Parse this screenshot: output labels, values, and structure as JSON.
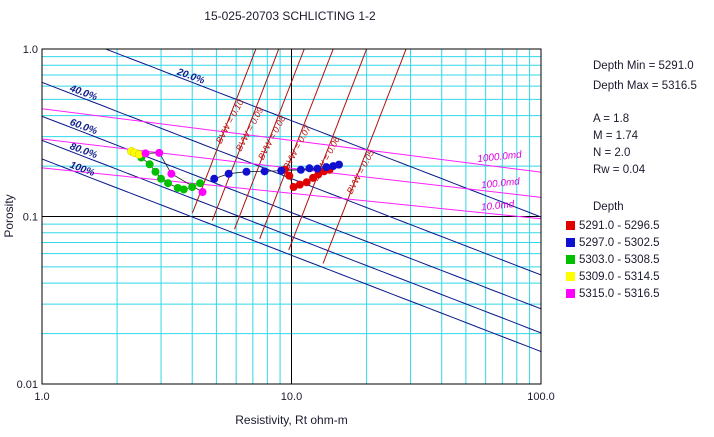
{
  "title": "15-025-20703 SCHLICTING 1-2",
  "info": {
    "depth_min": "Depth Min = 5291.0",
    "depth_max": "Depth Max = 5316.5",
    "a": "A = 1.8",
    "m": "M = 1.74",
    "n": "N = 2.0",
    "rw": "Rw = 0.04"
  },
  "legend": {
    "title": "Depth",
    "items": [
      {
        "label": "5291.0 - 5296.5",
        "color": "#e00000"
      },
      {
        "label": "5297.0 - 5302.5",
        "color": "#1010d0"
      },
      {
        "label": "5303.0 - 5308.5",
        "color": "#00c000"
      },
      {
        "label": "5309.0 - 5314.5",
        "color": "#ffff00"
      },
      {
        "label": "5315.0 - 5316.5",
        "color": "#ff00ff"
      }
    ]
  },
  "chart_data": {
    "type": "scatter",
    "title": "15-025-20703 SCHLICTING 1-2",
    "xlabel": "Resistivity, Rt ohm-m",
    "ylabel": "Porosity",
    "x_scale": "log",
    "y_scale": "log",
    "xlim": [
      1.0,
      100.0
    ],
    "ylim": [
      0.01,
      1.0
    ],
    "x_ticks": [
      "1.0",
      "10.0",
      "100.0"
    ],
    "y_ticks": [
      "0.01",
      "0.1",
      "1.0"
    ],
    "grid": true,
    "saturation_lines": [
      {
        "label": "20.0%",
        "sw": 0.2
      },
      {
        "label": "40.0%",
        "sw": 0.4
      },
      {
        "label": "60.0%",
        "sw": 0.6
      },
      {
        "label": "80.0%",
        "sw": 0.8
      },
      {
        "label": "100%",
        "sw": 1.0
      }
    ],
    "bvw_lines": [
      {
        "label": "BVW = 0.10",
        "bvw": 0.1
      },
      {
        "label": "BVW = 0.09",
        "bvw": 0.09
      },
      {
        "label": "BVW = 0.08",
        "bvw": 0.08
      },
      {
        "label": "BVW = 0.07",
        "bvw": 0.07
      },
      {
        "label": "BVW = 0.06",
        "bvw": 0.06
      },
      {
        "label": "BVW = 0.05",
        "bvw": 0.05
      }
    ],
    "permeability_lines": [
      {
        "label": "1000.0md",
        "start": [
          1.0,
          0.44
        ],
        "end": [
          100.0,
          0.184
        ]
      },
      {
        "label": "100.0md",
        "start": [
          1.0,
          0.29
        ],
        "end": [
          100.0,
          0.13
        ]
      },
      {
        "label": "10.0md",
        "start": [
          1.0,
          0.195
        ],
        "end": [
          100.0,
          0.097
        ]
      }
    ],
    "series": [
      {
        "name": "5291.0 - 5296.5",
        "color": "#e00000",
        "points": [
          [
            9.8,
            0.175
          ],
          [
            10.2,
            0.15
          ],
          [
            10.8,
            0.155
          ],
          [
            11.5,
            0.16
          ],
          [
            12.2,
            0.17
          ],
          [
            12.8,
            0.178
          ],
          [
            13.5,
            0.186
          ],
          [
            14.2,
            0.19
          ],
          [
            9.4,
            0.19
          ]
        ]
      },
      {
        "name": "5297.0 - 5302.5",
        "color": "#1010d0",
        "points": [
          [
            4.9,
            0.168
          ],
          [
            5.6,
            0.18
          ],
          [
            6.6,
            0.185
          ],
          [
            7.8,
            0.186
          ],
          [
            9.1,
            0.188
          ],
          [
            10.9,
            0.19
          ],
          [
            11.8,
            0.194
          ],
          [
            12.7,
            0.193
          ],
          [
            13.8,
            0.197
          ],
          [
            14.7,
            0.2
          ],
          [
            15.5,
            0.204
          ]
        ]
      },
      {
        "name": "5303.0 - 5308.5",
        "color": "#00c000",
        "points": [
          [
            2.5,
            0.225
          ],
          [
            2.7,
            0.205
          ],
          [
            2.85,
            0.185
          ],
          [
            3.0,
            0.168
          ],
          [
            3.2,
            0.158
          ],
          [
            3.5,
            0.148
          ],
          [
            3.7,
            0.145
          ],
          [
            4.0,
            0.15
          ],
          [
            4.3,
            0.158
          ]
        ]
      },
      {
        "name": "5309.0 - 5314.5",
        "color": "#ffff00",
        "points": [
          [
            2.28,
            0.245
          ],
          [
            2.35,
            0.24
          ],
          [
            2.45,
            0.235
          ]
        ]
      },
      {
        "name": "5315.0 - 5316.5",
        "color": "#ff00ff",
        "points": [
          [
            2.6,
            0.238
          ],
          [
            2.95,
            0.24
          ],
          [
            3.3,
            0.18
          ],
          [
            4.4,
            0.14
          ]
        ]
      }
    ]
  }
}
